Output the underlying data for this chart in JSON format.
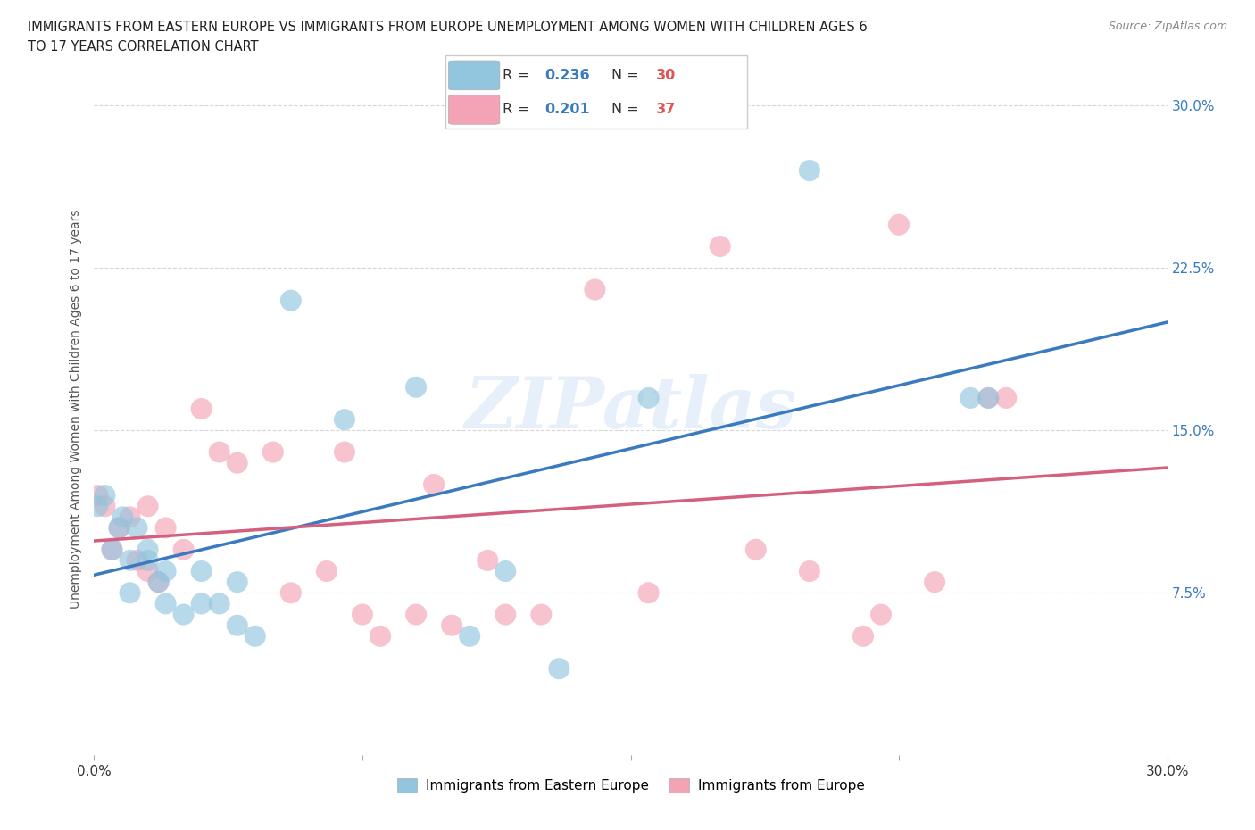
{
  "title_line1": "IMMIGRANTS FROM EASTERN EUROPE VS IMMIGRANTS FROM EUROPE UNEMPLOYMENT AMONG WOMEN WITH CHILDREN AGES 6",
  "title_line2": "TO 17 YEARS CORRELATION CHART",
  "source": "Source: ZipAtlas.com",
  "ylabel": "Unemployment Among Women with Children Ages 6 to 17 years",
  "ytick_labels": [
    "7.5%",
    "15.0%",
    "22.5%",
    "30.0%"
  ],
  "ytick_values": [
    0.075,
    0.15,
    0.225,
    0.3
  ],
  "xlim": [
    0.0,
    0.3
  ],
  "ylim": [
    0.0,
    0.32
  ],
  "legend1_label": "Immigrants from Eastern Europe",
  "legend2_label": "Immigrants from Europe",
  "r1": "0.236",
  "n1": "30",
  "r2": "0.201",
  "n2": "37",
  "color_blue": "#92c5de",
  "color_pink": "#f4a3b5",
  "line_color_blue": "#3a7abf",
  "line_color_pink": "#d45f7e",
  "watermark": "ZIPatlas",
  "blue_x": [
    0.001,
    0.003,
    0.005,
    0.007,
    0.008,
    0.01,
    0.01,
    0.012,
    0.015,
    0.015,
    0.018,
    0.02,
    0.02,
    0.025,
    0.03,
    0.03,
    0.035,
    0.04,
    0.04,
    0.045,
    0.055,
    0.07,
    0.09,
    0.105,
    0.115,
    0.13,
    0.155,
    0.2,
    0.245,
    0.25
  ],
  "blue_y": [
    0.115,
    0.12,
    0.095,
    0.105,
    0.11,
    0.075,
    0.09,
    0.105,
    0.09,
    0.095,
    0.08,
    0.07,
    0.085,
    0.065,
    0.07,
    0.085,
    0.07,
    0.06,
    0.08,
    0.055,
    0.21,
    0.155,
    0.17,
    0.055,
    0.085,
    0.04,
    0.165,
    0.27,
    0.165,
    0.165
  ],
  "pink_x": [
    0.001,
    0.003,
    0.005,
    0.007,
    0.01,
    0.012,
    0.015,
    0.015,
    0.018,
    0.02,
    0.025,
    0.03,
    0.035,
    0.04,
    0.05,
    0.055,
    0.065,
    0.07,
    0.075,
    0.08,
    0.09,
    0.095,
    0.1,
    0.11,
    0.115,
    0.125,
    0.14,
    0.155,
    0.175,
    0.185,
    0.2,
    0.215,
    0.22,
    0.225,
    0.235,
    0.25,
    0.255
  ],
  "pink_y": [
    0.12,
    0.115,
    0.095,
    0.105,
    0.11,
    0.09,
    0.085,
    0.115,
    0.08,
    0.105,
    0.095,
    0.16,
    0.14,
    0.135,
    0.14,
    0.075,
    0.085,
    0.14,
    0.065,
    0.055,
    0.065,
    0.125,
    0.06,
    0.09,
    0.065,
    0.065,
    0.215,
    0.075,
    0.235,
    0.095,
    0.085,
    0.055,
    0.065,
    0.245,
    0.08,
    0.165,
    0.165
  ]
}
